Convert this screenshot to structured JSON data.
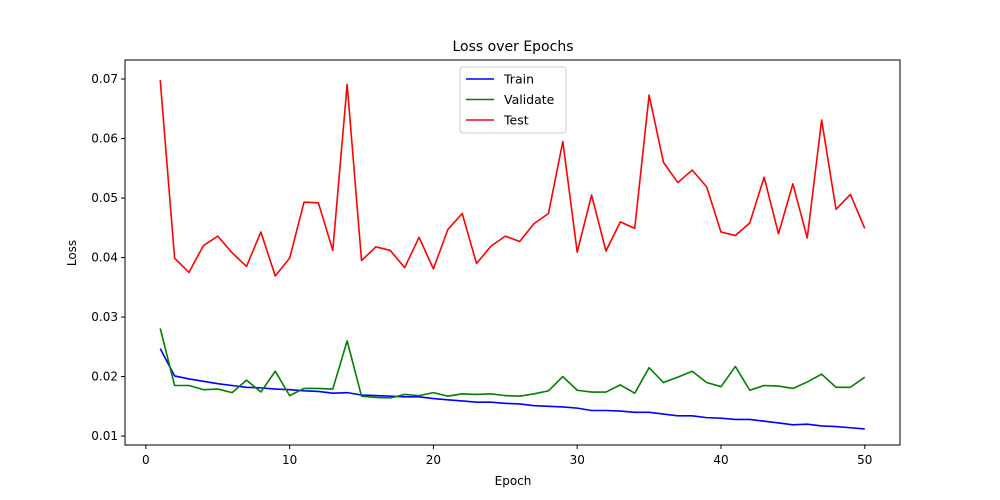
{
  "chart_data": {
    "type": "line",
    "title": "Loss over Epochs",
    "xlabel": "Epoch",
    "ylabel": "Loss",
    "xlim": [
      -1.45,
      52.45
    ],
    "ylim": [
      0.0085,
      0.0732
    ],
    "xticks": [
      0,
      10,
      20,
      30,
      40,
      50
    ],
    "xtick_labels": [
      "0",
      "10",
      "20",
      "30",
      "40",
      "50"
    ],
    "yticks": [
      0.01,
      0.02,
      0.03,
      0.04,
      0.05,
      0.06,
      0.07
    ],
    "ytick_labels": [
      "0.01",
      "0.02",
      "0.03",
      "0.04",
      "0.05",
      "0.06",
      "0.07"
    ],
    "grid": false,
    "legend_position": "top-center",
    "x": [
      1,
      2,
      3,
      4,
      5,
      6,
      7,
      8,
      9,
      10,
      11,
      12,
      13,
      14,
      15,
      16,
      17,
      18,
      19,
      20,
      21,
      22,
      23,
      24,
      25,
      26,
      27,
      28,
      29,
      30,
      31,
      32,
      33,
      34,
      35,
      36,
      37,
      38,
      39,
      40,
      41,
      42,
      43,
      44,
      45,
      46,
      47,
      48,
      49,
      50
    ],
    "series": [
      {
        "name": "Train",
        "color": "#0000ff",
        "values": [
          0.0247,
          0.0201,
          0.0196,
          0.0192,
          0.0188,
          0.0185,
          0.0182,
          0.0181,
          0.0179,
          0.0178,
          0.0176,
          0.0175,
          0.0172,
          0.0173,
          0.0169,
          0.0168,
          0.0167,
          0.0166,
          0.0166,
          0.0163,
          0.0161,
          0.0159,
          0.0157,
          0.0157,
          0.0155,
          0.0154,
          0.0151,
          0.015,
          0.0149,
          0.0147,
          0.0143,
          0.0143,
          0.0142,
          0.014,
          0.014,
          0.0137,
          0.0134,
          0.0134,
          0.0131,
          0.013,
          0.0128,
          0.0128,
          0.0125,
          0.0122,
          0.0119,
          0.012,
          0.0117,
          0.0116,
          0.0114,
          0.0112
        ]
      },
      {
        "name": "Validate",
        "color": "#008000",
        "values": [
          0.0281,
          0.0185,
          0.0185,
          0.0178,
          0.0179,
          0.0173,
          0.0194,
          0.0174,
          0.0209,
          0.0168,
          0.018,
          0.018,
          0.0179,
          0.026,
          0.0167,
          0.0165,
          0.0164,
          0.017,
          0.0168,
          0.0173,
          0.0167,
          0.0171,
          0.017,
          0.0171,
          0.0168,
          0.0167,
          0.0171,
          0.0176,
          0.02,
          0.0177,
          0.0174,
          0.0174,
          0.0186,
          0.0172,
          0.0215,
          0.019,
          0.0199,
          0.0209,
          0.019,
          0.0183,
          0.0217,
          0.0177,
          0.0185,
          0.0184,
          0.018,
          0.0191,
          0.0204,
          0.0182,
          0.0182,
          0.0199
        ]
      },
      {
        "name": "Test",
        "color": "#ff0000",
        "values": [
          0.0698,
          0.0399,
          0.0375,
          0.042,
          0.0436,
          0.0408,
          0.0385,
          0.0443,
          0.0369,
          0.0399,
          0.0493,
          0.0492,
          0.0412,
          0.0691,
          0.0395,
          0.0418,
          0.0412,
          0.0383,
          0.0434,
          0.0381,
          0.0447,
          0.0474,
          0.039,
          0.0419,
          0.0436,
          0.0427,
          0.0457,
          0.0474,
          0.0595,
          0.0409,
          0.0505,
          0.0411,
          0.046,
          0.0449,
          0.0673,
          0.056,
          0.0526,
          0.0547,
          0.0519,
          0.0443,
          0.0437,
          0.0458,
          0.0535,
          0.044,
          0.0524,
          0.0433,
          0.0631,
          0.0481,
          0.0506,
          0.0449
        ]
      }
    ]
  }
}
